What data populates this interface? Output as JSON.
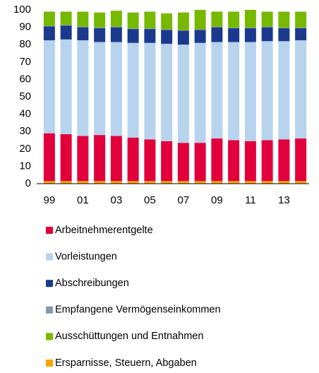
{
  "chart_data": {
    "type": "stacked-bar",
    "categories": [
      "99",
      null,
      "01",
      null,
      "03",
      null,
      "05",
      null,
      "07",
      null,
      "09",
      null,
      "11",
      null,
      "13",
      null
    ],
    "ylim": [
      0,
      100
    ],
    "yticks": [
      0,
      10,
      20,
      30,
      40,
      50,
      60,
      70,
      80,
      90,
      100
    ],
    "grid": false,
    "series": [
      {
        "name": "Arbeitnehmerentgelte",
        "color": "#e2003c",
        "values": [
          27.5,
          27,
          26,
          26.5,
          26,
          25,
          24,
          23,
          22,
          22,
          24.5,
          23.5,
          23,
          23.5,
          24,
          24.5
        ]
      },
      {
        "name": "Vorleistungen",
        "color": "#b7d3ee",
        "values": [
          53.5,
          54.5,
          55,
          53.5,
          54,
          54.5,
          55.5,
          56,
          56.5,
          57.5,
          55.5,
          56.5,
          57,
          57,
          56.5,
          56.5
        ]
      },
      {
        "name": "Abschreibungen",
        "color": "#1b3a8e",
        "values": [
          8,
          8,
          7.5,
          8,
          8.5,
          8,
          8,
          8,
          8,
          7.5,
          8.5,
          8,
          8,
          8,
          7.5,
          7
        ]
      },
      {
        "name": "Empfangene Vermögenseinkommen",
        "color": "#8497b0",
        "values": [
          0.3,
          0.3,
          0.3,
          0.3,
          0.3,
          0.3,
          0.3,
          0.3,
          0.3,
          0.3,
          0.3,
          0.3,
          0.3,
          0.3,
          0.3,
          0.3
        ]
      },
      {
        "name": "Ausschüttungen und Entnahmen",
        "color": "#76b900",
        "values": [
          8.2,
          7.7,
          8.7,
          8.7,
          9.2,
          9.2,
          9.7,
          9.2,
          10.2,
          11.2,
          8.7,
          9.2,
          10.2,
          8.7,
          9.2,
          9.2
        ]
      },
      {
        "name": "Ersparnisse, Steuern, Abgaben",
        "color": "#f7a600",
        "values": [
          1.5,
          1.5,
          1.5,
          1.5,
          1.5,
          1.5,
          1.5,
          1.5,
          1.5,
          1.5,
          1.5,
          1.5,
          1.5,
          1.5,
          1.5,
          1.5
        ]
      }
    ]
  }
}
